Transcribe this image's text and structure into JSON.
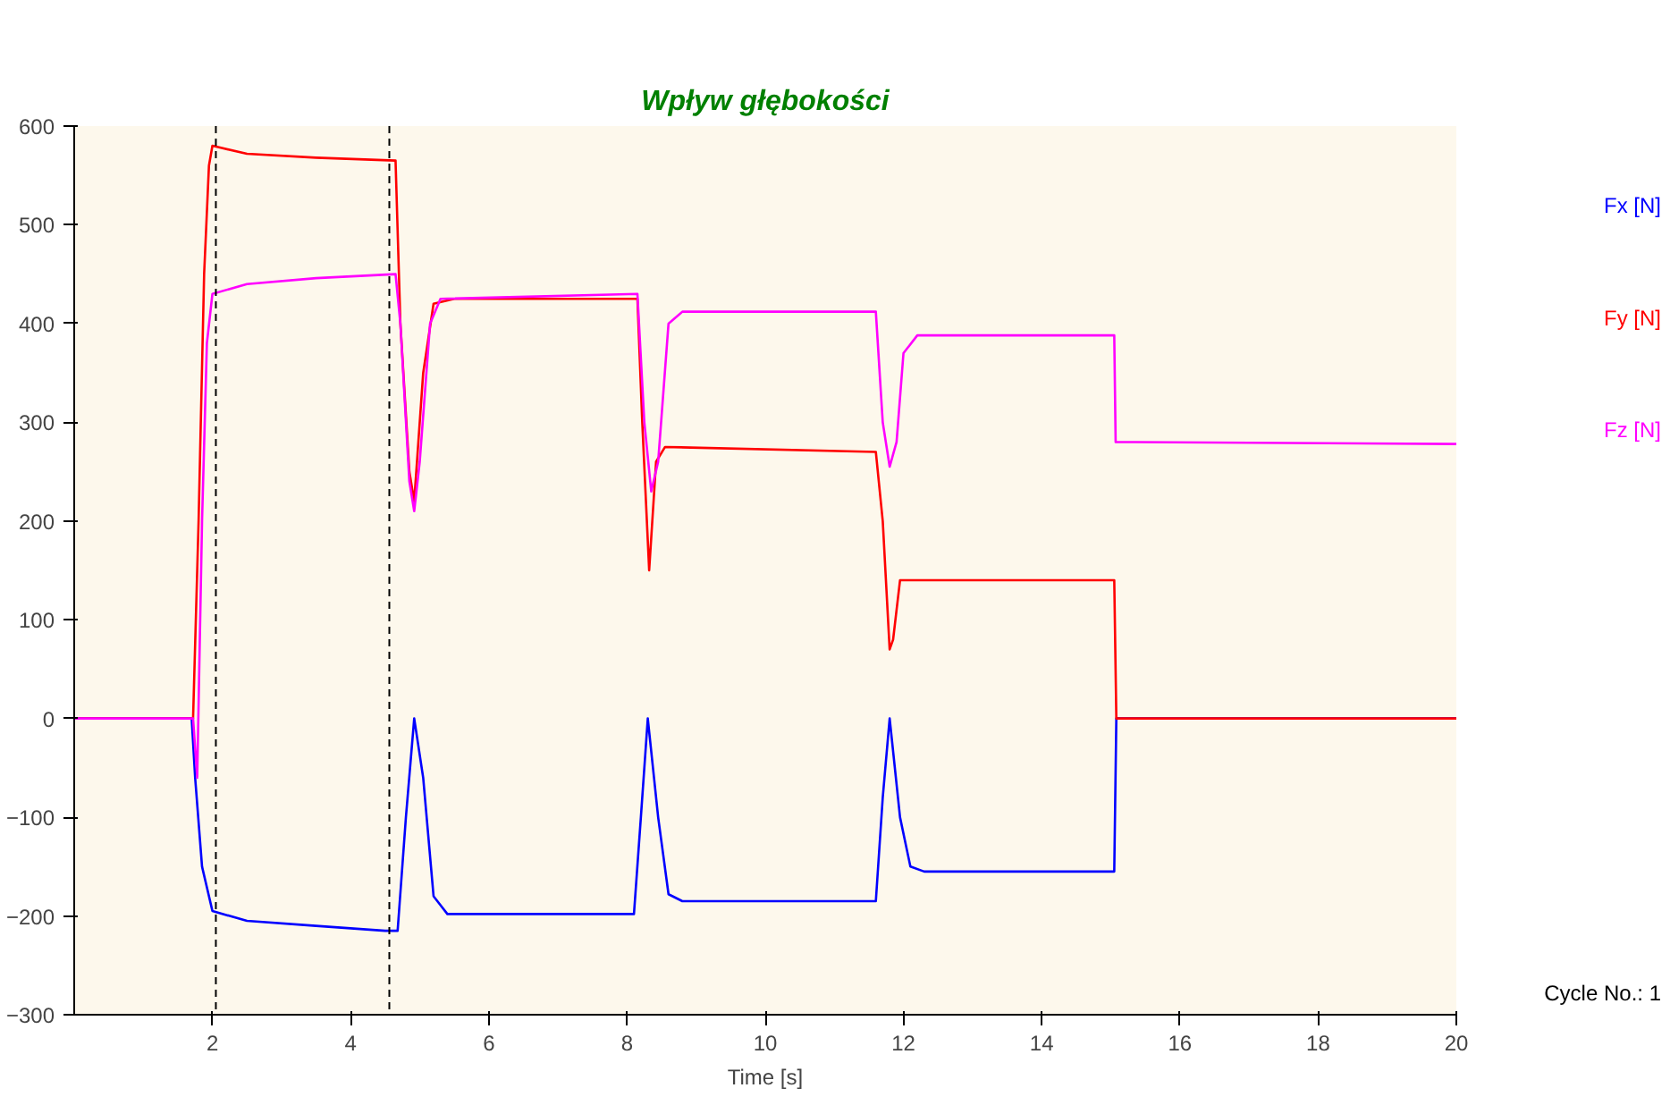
{
  "chart_data": {
    "type": "line",
    "title": "Wpływ głębokości",
    "xlabel": "Time [s]",
    "xlim": [
      0,
      20
    ],
    "ylim": [
      -300,
      600
    ],
    "xticks": [
      2,
      4,
      6,
      8,
      10,
      12,
      14,
      16,
      18,
      20
    ],
    "yticks": [
      -300,
      -200,
      -100,
      0,
      100,
      200,
      300,
      400,
      500,
      600
    ],
    "grid": false,
    "legend": "right",
    "marker": "none",
    "line_style": "solid",
    "annotations": [
      "Cycle No.: 1"
    ],
    "ref_lines": [
      {
        "axis": "x",
        "value": 2.05,
        "color": "#000000",
        "line_style": "dashed"
      },
      {
        "axis": "x",
        "value": 4.56,
        "color": "#000000",
        "line_style": "dashed"
      }
    ],
    "series": [
      {
        "name": "Fx [N]",
        "color": "#0000ff",
        "x": [
          0,
          1.7,
          1.75,
          1.85,
          2.0,
          2.5,
          3.5,
          4.5,
          4.68,
          4.8,
          4.92,
          5.05,
          5.2,
          5.4,
          8.1,
          8.2,
          8.3,
          8.45,
          8.6,
          8.8,
          11.6,
          11.7,
          11.8,
          11.95,
          12.1,
          12.3,
          15.05,
          15.08,
          20
        ],
        "values": [
          0,
          0,
          -60,
          -150,
          -195,
          -205,
          -210,
          -215,
          -215,
          -100,
          0,
          -60,
          -180,
          -198,
          -198,
          -100,
          0,
          -100,
          -178,
          -185,
          -185,
          -80,
          0,
          -100,
          -150,
          -155,
          -155,
          0,
          0
        ]
      },
      {
        "name": "Fy [N]",
        "color": "#ff0000",
        "x": [
          0,
          1.72,
          1.8,
          1.88,
          1.95,
          2.0,
          2.5,
          3.5,
          4.65,
          4.72,
          4.85,
          4.92,
          5.05,
          5.2,
          5.5,
          8.15,
          8.22,
          8.32,
          8.42,
          8.55,
          11.6,
          11.7,
          11.8,
          11.85,
          11.95,
          15.05,
          15.08,
          20
        ],
        "values": [
          0,
          0,
          200,
          450,
          560,
          580,
          572,
          568,
          565,
          400,
          250,
          220,
          350,
          420,
          425,
          425,
          300,
          150,
          260,
          275,
          270,
          200,
          70,
          80,
          140,
          140,
          0,
          0
        ]
      },
      {
        "name": "Fz [N]",
        "color": "#ff00ff",
        "x": [
          0,
          1.72,
          1.78,
          1.85,
          1.92,
          2.0,
          2.5,
          3.5,
          4.65,
          4.72,
          4.85,
          4.92,
          5.0,
          5.15,
          5.3,
          8.15,
          8.25,
          8.35,
          8.45,
          8.6,
          8.8,
          11.6,
          11.7,
          11.8,
          11.9,
          12.0,
          12.2,
          15.05,
          15.07,
          20
        ],
        "values": [
          0,
          0,
          -60,
          200,
          380,
          430,
          440,
          446,
          450,
          400,
          240,
          210,
          260,
          400,
          425,
          430,
          300,
          230,
          260,
          400,
          412,
          412,
          300,
          255,
          280,
          370,
          388,
          388,
          280,
          278
        ]
      }
    ]
  }
}
